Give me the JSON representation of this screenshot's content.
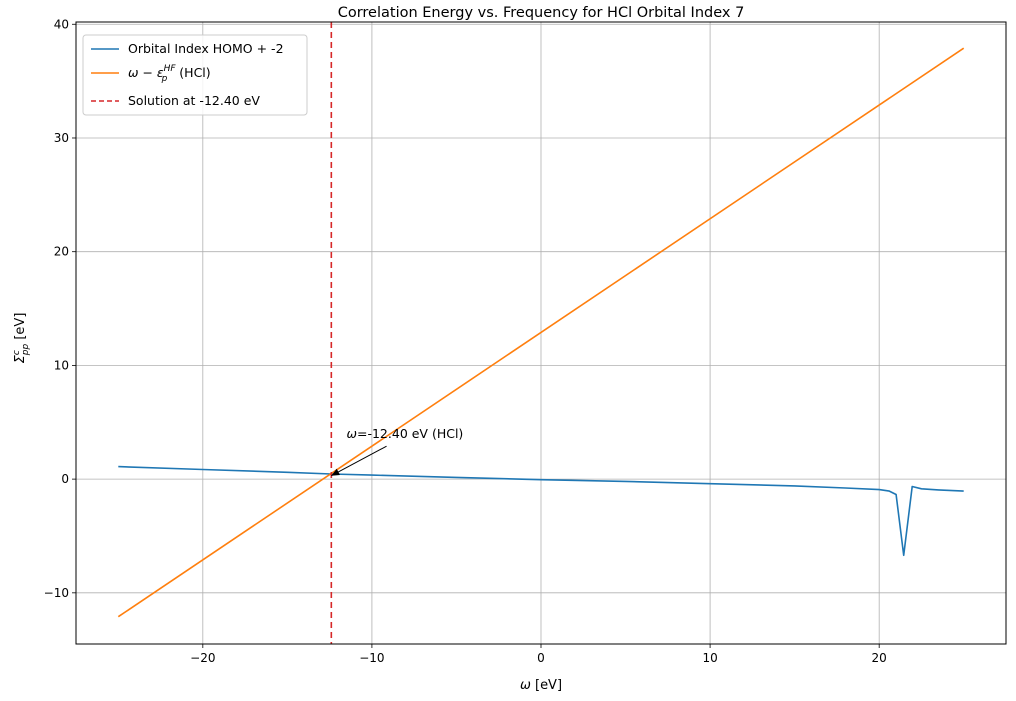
{
  "chart_data": {
    "type": "line",
    "title": "Correlation Energy vs. Frequency for HCl Orbital Index 7",
    "xlabel": "ω [eV]",
    "ylabel": "Σᶜₚₚ [eV]",
    "xlim": [
      -27.5,
      27.5
    ],
    "ylim": [
      -14.5,
      40.2
    ],
    "x_ticks": [
      -20,
      -10,
      0,
      10,
      20
    ],
    "y_ticks": [
      -10,
      0,
      10,
      20,
      30,
      40
    ],
    "grid": true,
    "legend_position": "top-left",
    "series": [
      {
        "name": "Orbital Index HOMO + -2",
        "color": "#1f77b4",
        "x": [
          -25,
          -20,
          -15,
          -12.4,
          -10,
          -5,
          0,
          5,
          10,
          15,
          18,
          20,
          20.6,
          21.0,
          21.45,
          21.95,
          22.5,
          23.5,
          25
        ],
        "y": [
          1.1,
          0.85,
          0.6,
          0.45,
          0.35,
          0.15,
          -0.05,
          -0.2,
          -0.4,
          -0.6,
          -0.78,
          -0.92,
          -1.05,
          -1.35,
          -6.7,
          -0.65,
          -0.85,
          -0.95,
          -1.05
        ]
      },
      {
        "name": "ω − ε_p^HF (HCl)",
        "color": "#ff7f0e",
        "x": [
          -25,
          25
        ],
        "y": [
          -12.1,
          37.9
        ]
      }
    ],
    "vlines": [
      {
        "name": "Solution at -12.40 eV",
        "x": -12.4,
        "color": "#d62728",
        "style": "dashed"
      }
    ],
    "annotations": [
      {
        "text": "ω=-12.40 eV (HCl)",
        "x": -12.4,
        "y": 0.3,
        "text_x": -11.5,
        "text_y": 3.6
      }
    ]
  },
  "legend": {
    "item1": "Orbital Index HOMO + -2",
    "item2_base": "ω − ε",
    "item2_sup": "HF",
    "item2_sub": "p",
    "item2_suffix": " (HCl)",
    "item3": "Solution at -12.40 eV"
  },
  "axis_text": {
    "x_symbol": "ω",
    "x_units": " [eV]",
    "y_symbol": "Σ",
    "y_sup": "c",
    "y_sub": "pp",
    "y_units": " [eV]"
  },
  "annotation_text": {
    "symbol": "ω",
    "rest": "=-12.40 eV (HCl)"
  }
}
